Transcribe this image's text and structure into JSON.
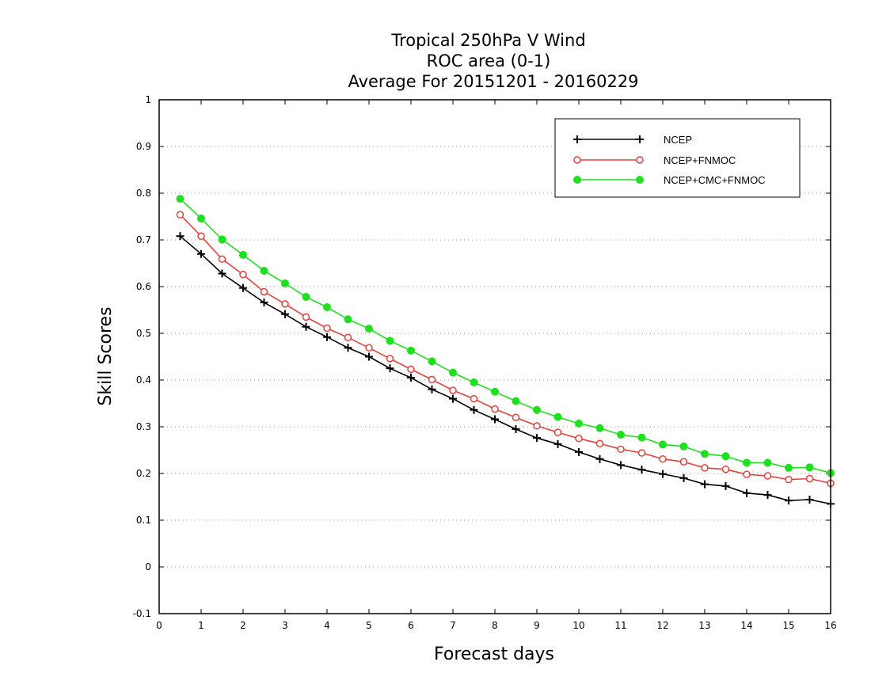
{
  "chart_data": {
    "type": "line",
    "title": [
      "Tropical 250hPa V Wind",
      "ROC area (0-1)",
      "Average For 20151201 - 20160229"
    ],
    "xlabel": "Forecast days",
    "ylabel": "Skill Scores",
    "xlim": [
      0,
      16
    ],
    "ylim": [
      -0.1,
      1
    ],
    "xticks": [
      "0",
      "1",
      "2",
      "3",
      "4",
      "5",
      "6",
      "7",
      "8",
      "9",
      "10",
      "11",
      "12",
      "13",
      "14",
      "15",
      "16"
    ],
    "yticks": [
      "-0.1",
      "0",
      "0.1",
      "0.2",
      "0.3",
      "0.4",
      "0.5",
      "0.6",
      "0.7",
      "0.8",
      "0.9",
      "1"
    ],
    "grid": "horizontal-dotted",
    "legend_position": "top-right",
    "x": [
      0.5,
      1,
      1.5,
      2,
      2.5,
      3,
      3.5,
      4,
      4.5,
      5,
      5.5,
      6,
      6.5,
      7,
      7.5,
      8,
      8.5,
      9,
      9.5,
      10,
      10.5,
      11,
      11.5,
      12,
      12.5,
      13,
      13.5,
      14,
      14.5,
      15,
      15.5,
      16
    ],
    "series": [
      {
        "name": "NCEP",
        "color": "#000000",
        "marker": "plus",
        "values": [
          0.708,
          0.67,
          0.628,
          0.597,
          0.566,
          0.541,
          0.514,
          0.492,
          0.469,
          0.45,
          0.425,
          0.405,
          0.38,
          0.36,
          0.336,
          0.316,
          0.295,
          0.276,
          0.263,
          0.246,
          0.231,
          0.218,
          0.208,
          0.199,
          0.19,
          0.177,
          0.173,
          0.158,
          0.154,
          0.142,
          0.144,
          0.135
        ]
      },
      {
        "name": "NCEP+FNMOC",
        "color": "#e8403a",
        "marker": "circle-open",
        "values": [
          0.754,
          0.708,
          0.659,
          0.626,
          0.589,
          0.563,
          0.535,
          0.511,
          0.491,
          0.469,
          0.446,
          0.423,
          0.401,
          0.378,
          0.36,
          0.338,
          0.32,
          0.302,
          0.288,
          0.275,
          0.264,
          0.252,
          0.244,
          0.231,
          0.225,
          0.212,
          0.209,
          0.198,
          0.195,
          0.187,
          0.189,
          0.179
        ]
      },
      {
        "name": "NCEP+CMC+FNMOC",
        "color": "#1ee01e",
        "marker": "circle-filled",
        "values": [
          0.788,
          0.746,
          0.701,
          0.668,
          0.634,
          0.607,
          0.578,
          0.556,
          0.53,
          0.51,
          0.484,
          0.463,
          0.44,
          0.416,
          0.395,
          0.375,
          0.355,
          0.336,
          0.321,
          0.307,
          0.297,
          0.283,
          0.277,
          0.262,
          0.258,
          0.242,
          0.237,
          0.223,
          0.223,
          0.212,
          0.213,
          0.201
        ]
      }
    ]
  }
}
